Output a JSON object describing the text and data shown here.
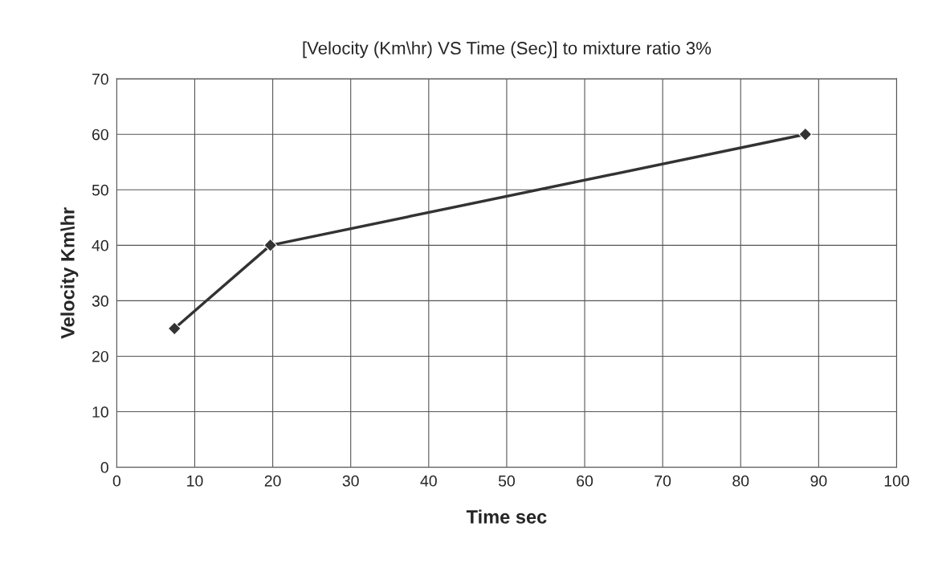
{
  "chart_data": {
    "type": "line",
    "title": "[Velocity (Km\\hr) VS Time (Sec)] to mixture ratio 3%",
    "xlabel": "Time sec",
    "ylabel": "Velocity Km\\hr",
    "series": [
      {
        "color": "#333333",
        "x": [
          7.4,
          19.7,
          88.3
        ],
        "values": [
          25,
          40,
          60
        ]
      }
    ],
    "xlim": [
      0,
      100
    ],
    "xticks": [
      0,
      10,
      20,
      30,
      40,
      50,
      60,
      70,
      80,
      90,
      100
    ],
    "ylim": [
      0,
      70
    ],
    "yticks": [
      0,
      10,
      20,
      30,
      40,
      50,
      60,
      70
    ],
    "grid": true,
    "marker": "diamond",
    "line_style": "solid",
    "legend": false
  }
}
